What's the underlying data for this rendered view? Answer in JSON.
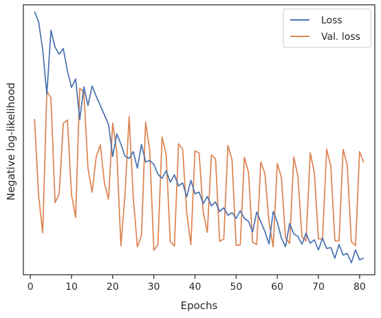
{
  "chart_data": {
    "type": "line",
    "title": "",
    "xlabel": "Epochs",
    "ylabel": "Negative log-likelihood",
    "xlim": [
      -1.7,
      83.7
    ],
    "ylim": [
      0,
      1
    ],
    "x_ticks": [
      0,
      10,
      20,
      30,
      40,
      50,
      60,
      70,
      80
    ],
    "y_ticks_labeled": false,
    "grid": false,
    "legend_position": "top-right",
    "x": [
      1,
      2,
      3,
      4,
      5,
      6,
      7,
      8,
      9,
      10,
      11,
      12,
      13,
      14,
      15,
      16,
      17,
      18,
      19,
      20,
      21,
      22,
      23,
      24,
      25,
      26,
      27,
      28,
      29,
      30,
      31,
      32,
      33,
      34,
      35,
      36,
      37,
      38,
      39,
      40,
      41,
      42,
      43,
      44,
      45,
      46,
      47,
      48,
      49,
      50,
      51,
      52,
      53,
      54,
      55,
      56,
      57,
      58,
      59,
      60,
      61,
      62,
      63,
      64,
      65,
      66,
      67,
      68,
      69,
      70,
      71,
      72,
      73,
      74,
      75,
      76,
      77,
      78,
      79,
      80,
      81
    ],
    "series": [
      {
        "name": "Loss",
        "color": "#4c72b0",
        "values": [
          0.975,
          0.937,
          0.833,
          0.668,
          0.906,
          0.843,
          0.817,
          0.838,
          0.755,
          0.694,
          0.725,
          0.575,
          0.696,
          0.627,
          0.699,
          0.661,
          0.627,
          0.592,
          0.556,
          0.438,
          0.522,
          0.484,
          0.439,
          0.431,
          0.456,
          0.395,
          0.483,
          0.418,
          0.423,
          0.409,
          0.372,
          0.357,
          0.385,
          0.343,
          0.37,
          0.329,
          0.34,
          0.289,
          0.35,
          0.3,
          0.306,
          0.264,
          0.29,
          0.255,
          0.27,
          0.234,
          0.248,
          0.22,
          0.23,
          0.209,
          0.237,
          0.209,
          0.198,
          0.159,
          0.232,
          0.196,
          0.16,
          0.114,
          0.234,
          0.195,
          0.136,
          0.104,
          0.19,
          0.152,
          0.142,
          0.113,
          0.154,
          0.117,
          0.129,
          0.092,
          0.135,
          0.097,
          0.101,
          0.061,
          0.112,
          0.073,
          0.079,
          0.044,
          0.092,
          0.055,
          0.062
        ]
      },
      {
        "name": "Val. loss",
        "color": "#dd8452",
        "values": [
          0.577,
          0.293,
          0.155,
          0.68,
          0.655,
          0.267,
          0.299,
          0.561,
          0.573,
          0.296,
          0.213,
          0.691,
          0.676,
          0.394,
          0.306,
          0.436,
          0.481,
          0.339,
          0.28,
          0.562,
          0.456,
          0.107,
          0.297,
          0.586,
          0.287,
          0.103,
          0.146,
          0.565,
          0.46,
          0.091,
          0.112,
          0.51,
          0.444,
          0.122,
          0.107,
          0.485,
          0.464,
          0.228,
          0.112,
          0.459,
          0.451,
          0.232,
          0.157,
          0.444,
          0.429,
          0.124,
          0.132,
          0.479,
          0.426,
          0.109,
          0.11,
          0.435,
          0.38,
          0.121,
          0.112,
          0.418,
          0.374,
          0.194,
          0.103,
          0.412,
          0.361,
          0.137,
          0.116,
          0.436,
          0.367,
          0.14,
          0.125,
          0.452,
          0.379,
          0.133,
          0.133,
          0.465,
          0.403,
          0.126,
          0.125,
          0.464,
          0.407,
          0.123,
          0.108,
          0.456,
          0.416
        ]
      }
    ]
  }
}
